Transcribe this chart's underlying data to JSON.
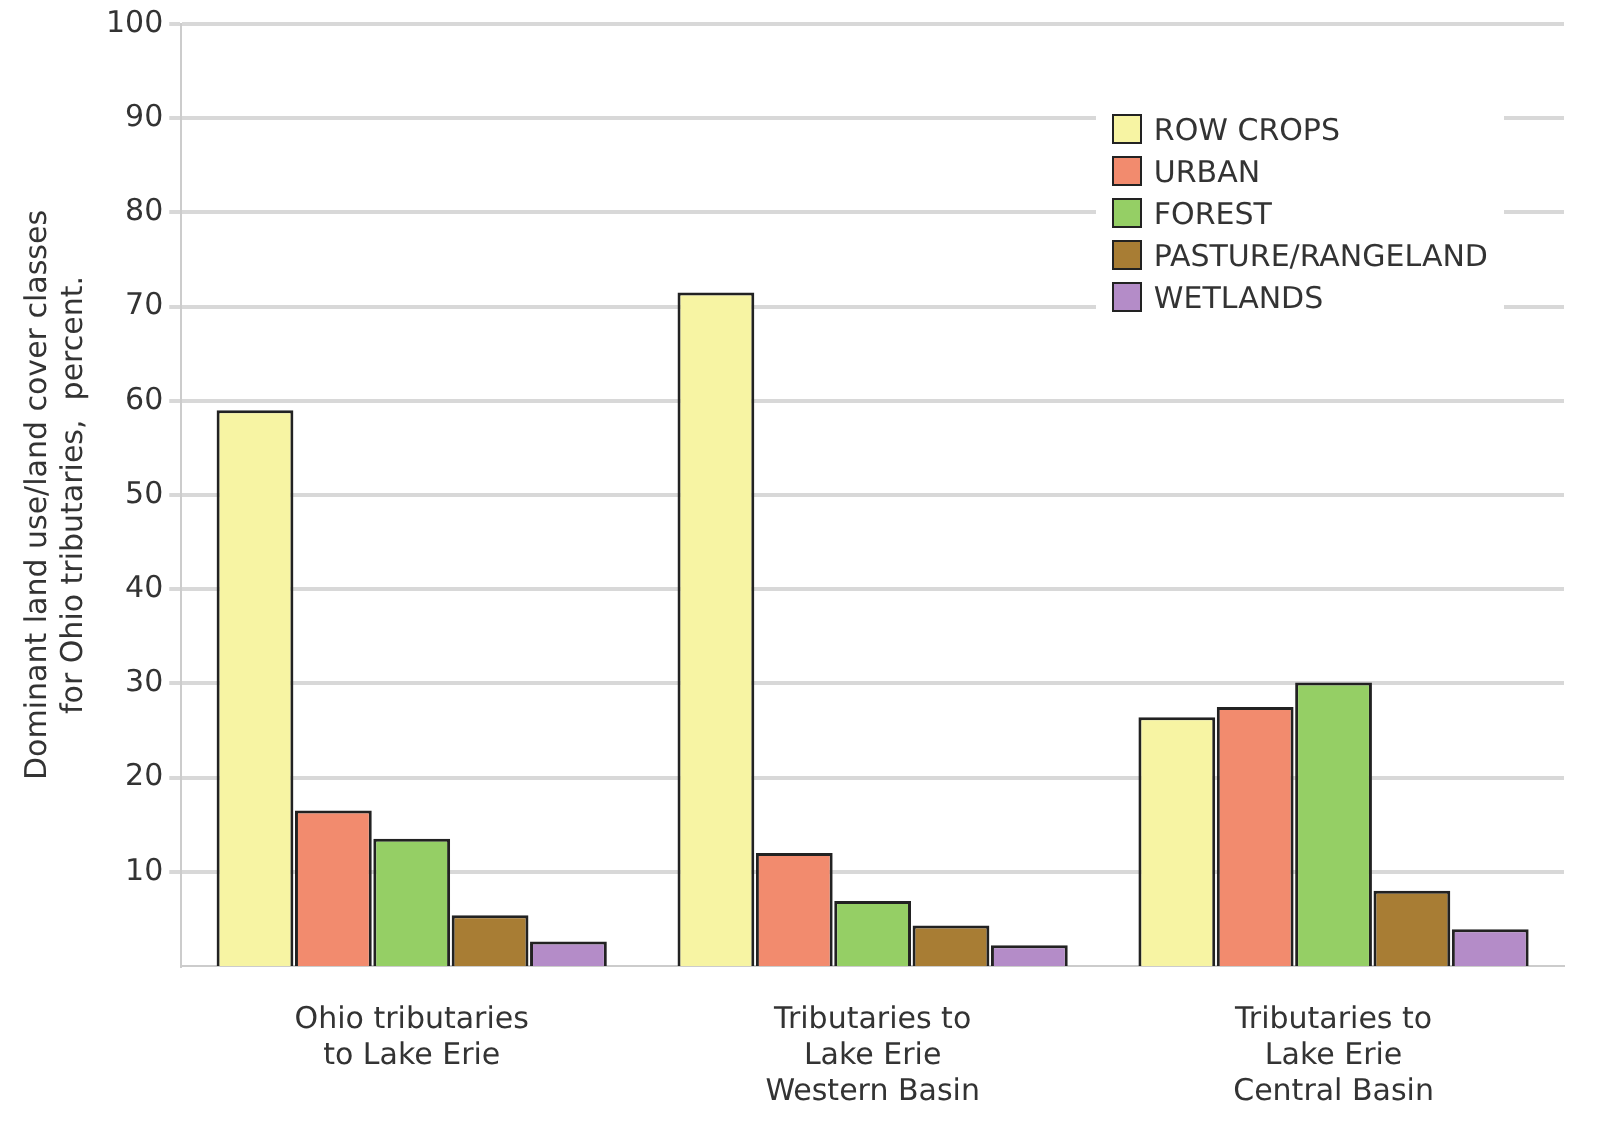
{
  "chart_data": {
    "type": "bar",
    "ylabel": "Dominant land use/land cover classes\nfor Ohio tributaries,  percent.",
    "categories": [
      "Ohio tributaries\nto Lake Erie",
      "Tributaries to\nLake Erie\nWestern Basin",
      "Tributaries to\nLake Erie\nCentral Basin"
    ],
    "series": [
      {
        "name": "ROW CROPS",
        "color": "#f7f4a3",
        "values": [
          59,
          71.5,
          26.4
        ]
      },
      {
        "name": "URBAN",
        "color": "#f28b6e",
        "values": [
          16.5,
          12,
          27.5
        ]
      },
      {
        "name": "FOREST",
        "color": "#95cf65",
        "values": [
          13.5,
          6.9,
          30.1
        ]
      },
      {
        "name": "PASTURE/RANGELAND",
        "color": "#a87d34",
        "values": [
          5.4,
          4.3,
          8
        ]
      },
      {
        "name": "WETLANDS",
        "color": "#b48cc8",
        "values": [
          2.6,
          2.2,
          3.9
        ]
      }
    ],
    "ylim": [
      0,
      100
    ],
    "yticks": [
      10,
      20,
      30,
      40,
      50,
      60,
      70,
      80,
      90,
      100
    ],
    "grid": "y",
    "legend": "top right"
  }
}
